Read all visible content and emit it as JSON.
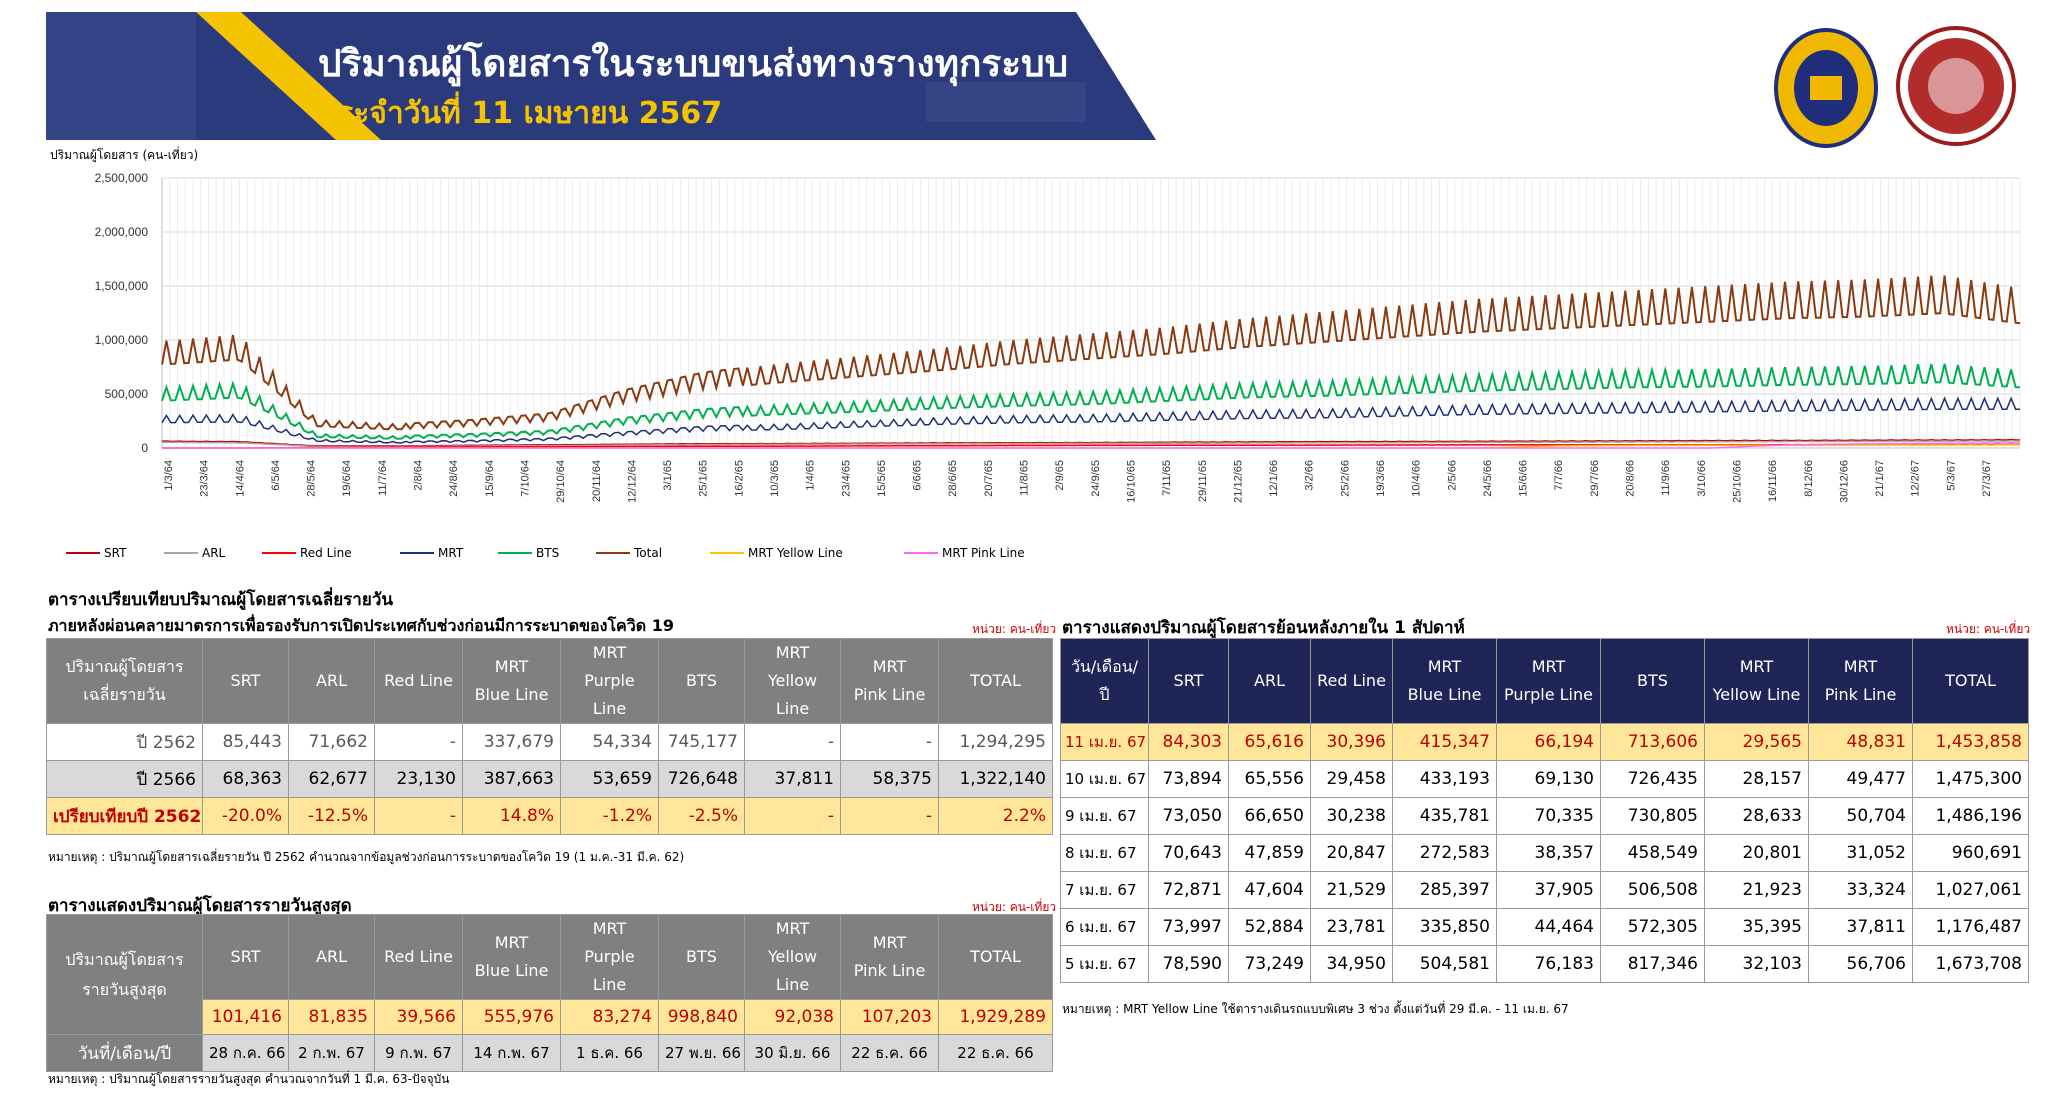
{
  "header": {
    "title": "ปริมาณผู้โดยสารในระบบขนส่งทางรางทุกระบบ",
    "subtitle": "ประจำวันที่ 11 เมษายน 2567"
  },
  "colors": {
    "banner_bg": "#2b3a7c",
    "banner_stripe": "#f5c400",
    "srt": "#c00000",
    "arl": "#a6a6a6",
    "red_line": "#ff0000",
    "mrt": "#1f2d7a",
    "bts": "#00b050",
    "total": "#8b3a0f",
    "mrt_yellow": "#ffc000",
    "mrt_pink": "#ff66ff",
    "table_header_grey": "#808080",
    "table_header_navy": "#1f2557",
    "highlight_yellow": "#ffe699",
    "highlight_row_red_text": "#c00000"
  },
  "chart_data": {
    "type": "line",
    "ylabel": "ปริมาณผู้โดยสาร (คน-เที่ยว)",
    "ylim": [
      0,
      2500000
    ],
    "y_ticks": [
      "2,500,000",
      "2,000,000",
      "1,500,000",
      "1,000,000",
      "500,000",
      "0"
    ],
    "x_tick_labels": [
      "1/3/64",
      "23/3/64",
      "14/4/64",
      "6/5/64",
      "28/5/64",
      "19/6/64",
      "11/7/64",
      "2/8/64",
      "24/8/64",
      "15/9/64",
      "7/10/64",
      "29/10/64",
      "20/11/64",
      "12/12/64",
      "3/1/65",
      "25/1/65",
      "16/2/65",
      "10/3/65",
      "1/4/65",
      "23/4/65",
      "15/5/65",
      "6/6/65",
      "28/6/65",
      "20/7/65",
      "11/8/65",
      "2/9/65",
      "24/9/65",
      "16/10/65",
      "7/11/65",
      "29/11/65",
      "21/12/65",
      "12/1/66",
      "3/2/66",
      "25/2/66",
      "19/3/66",
      "10/4/66",
      "2/5/66",
      "24/5/66",
      "15/6/66",
      "7/7/66",
      "29/7/66",
      "20/8/66",
      "11/9/66",
      "3/10/66",
      "25/10/66",
      "16/11/66",
      "8/12/66",
      "30/12/66",
      "21/1/67",
      "12/2/67",
      "5/3/67",
      "27/3/67"
    ],
    "grid": true,
    "legend_position": "bottom",
    "series": [
      {
        "name": "SRT",
        "color": "#c00000",
        "values": [
          65000,
          60000,
          20000,
          20000,
          25000,
          30000,
          35000,
          40000,
          42000,
          45000,
          48000,
          50000,
          52000,
          55000,
          58000,
          60000,
          62000,
          64000,
          66000,
          68000,
          70000,
          72000,
          74000,
          76000,
          78000
        ]
      },
      {
        "name": "ARL",
        "color": "#a6a6a6",
        "values": [
          55000,
          50000,
          15000,
          15000,
          18000,
          22000,
          28000,
          32000,
          35000,
          38000,
          40000,
          42000,
          44000,
          46000,
          48000,
          50000,
          52000,
          54000,
          56000,
          58000,
          60000,
          62000,
          64000,
          66000,
          68000
        ]
      },
      {
        "name": "Red Line",
        "color": "#ff0000",
        "values": [
          0,
          0,
          5000,
          8000,
          10000,
          12000,
          14000,
          16000,
          18000,
          20000,
          22000,
          24000,
          25000,
          26000,
          27000,
          28000,
          29000,
          30000,
          30000,
          31000,
          31000,
          32000,
          32000,
          33000,
          33000
        ]
      },
      {
        "name": "MRT",
        "color": "#1f2d7a",
        "values": [
          300000,
          310000,
          80000,
          60000,
          70000,
          90000,
          150000,
          200000,
          220000,
          250000,
          280000,
          300000,
          310000,
          330000,
          350000,
          360000,
          380000,
          400000,
          410000,
          420000,
          430000,
          440000,
          450000,
          460000,
          460000
        ]
      },
      {
        "name": "BTS",
        "color": "#00b050",
        "values": [
          560000,
          600000,
          130000,
          110000,
          130000,
          160000,
          280000,
          360000,
          400000,
          430000,
          470000,
          500000,
          520000,
          560000,
          600000,
          620000,
          650000,
          680000,
          700000,
          720000,
          730000,
          750000,
          760000,
          780000,
          720000
        ]
      },
      {
        "name": "Total",
        "color": "#8b3a0f",
        "values": [
          990000,
          1050000,
          260000,
          220000,
          260000,
          320000,
          540000,
          700000,
          780000,
          850000,
          920000,
          1000000,
          1060000,
          1120000,
          1200000,
          1260000,
          1320000,
          1380000,
          1420000,
          1460000,
          1500000,
          1540000,
          1560000,
          1600000,
          1480000
        ]
      },
      {
        "name": "MRT Yellow Line",
        "color": "#ffc000",
        "values": [
          0,
          0,
          0,
          0,
          0,
          0,
          0,
          0,
          0,
          0,
          0,
          0,
          0,
          0,
          0,
          0,
          0,
          0,
          20000,
          25000,
          26000,
          27000,
          28000,
          29000,
          30000
        ]
      },
      {
        "name": "MRT Pink Line",
        "color": "#ff66ff",
        "values": [
          0,
          0,
          0,
          0,
          0,
          0,
          0,
          0,
          0,
          0,
          0,
          0,
          0,
          0,
          0,
          0,
          0,
          0,
          0,
          0,
          0,
          30000,
          40000,
          45000,
          49000
        ]
      }
    ]
  },
  "table1": {
    "title1": "ตารางเปรียบเทียบปริมาณผู้โดยสารเฉลี่ยรายวัน",
    "title2": "ภายหลังผ่อนคลายมาตรการเพื่อรองรับการเปิดประเทศกับช่วงก่อนมีการระบาดของโควิด 19",
    "unit": "หน่วย: คน-เที่ยว",
    "header_first_line1": "ปริมาณผู้โดยสาร",
    "header_first_line2": "เฉลี่ยรายวัน",
    "headers": [
      [
        "SRT",
        ""
      ],
      [
        "ARL",
        ""
      ],
      [
        "Red Line",
        ""
      ],
      [
        "MRT",
        "Blue Line"
      ],
      [
        "MRT",
        "Purple Line"
      ],
      [
        "BTS",
        ""
      ],
      [
        "MRT",
        "Yellow Line"
      ],
      [
        "MRT",
        "Pink Line"
      ],
      [
        "TOTAL",
        ""
      ]
    ],
    "rows": [
      {
        "label": "ปี 2562",
        "cells": [
          "85,443",
          "71,662",
          "-",
          "337,679",
          "54,334",
          "745,177",
          "-",
          "-",
          "1,294,295"
        ]
      },
      {
        "label": "ปี 2566",
        "cells": [
          "68,363",
          "62,677",
          "23,130",
          "387,663",
          "53,659",
          "726,648",
          "37,811",
          "58,375",
          "1,322,140"
        ]
      },
      {
        "label": "เปรียบเทียบปี 2562",
        "cells": [
          "-20.0%",
          "-12.5%",
          "-",
          "14.8%",
          "-1.2%",
          "-2.5%",
          "-",
          "-",
          "2.2%"
        ]
      }
    ],
    "note": "หมายเหตุ : ปริมาณผู้โดยสารเฉลี่ยรายวัน ปี 2562 คำนวณจากข้อมูลช่วงก่อนการระบาดของโควิด 19 (1 ม.ค.-31 มี.ค. 62)"
  },
  "table2": {
    "title": "ตารางแสดงปริมาณผู้โดยสารรายวันสูงสุด",
    "unit": "หน่วย: คน-เที่ยว",
    "header_first_line1": "ปริมาณผู้โดยสาร",
    "header_first_line2": "รายวันสูงสุด",
    "headers": [
      [
        "SRT",
        ""
      ],
      [
        "ARL",
        ""
      ],
      [
        "Red Line",
        ""
      ],
      [
        "MRT",
        "Blue Line"
      ],
      [
        "MRT",
        "Purple Line"
      ],
      [
        "BTS",
        ""
      ],
      [
        "MRT",
        "Yellow Line"
      ],
      [
        "MRT",
        "Pink Line"
      ],
      [
        "TOTAL",
        ""
      ]
    ],
    "values": [
      "101,416",
      "81,835",
      "39,566",
      "555,976",
      "83,274",
      "998,840",
      "92,038",
      "107,203",
      "1,929,289"
    ],
    "date_label": "วันที่/เดือน/ปี",
    "dates": [
      "28 ก.ค. 66",
      "2 ก.พ. 67",
      "9 ก.พ. 67",
      "14 ก.พ. 67",
      "1 ธ.ค. 66",
      "27 พ.ย. 66",
      "30 มิ.ย. 66",
      "22 ธ.ค. 66",
      "22 ธ.ค. 66"
    ],
    "note": "หมายเหตุ : ปริมาณผู้โดยสารรายวันสูงสุด คำนวณจากวันที่ 1 มี.ค. 63-ปัจจุบัน"
  },
  "table3": {
    "title": "ตารางแสดงปริมาณผู้โดยสารย้อนหลังภายใน 1 สัปดาห์",
    "unit": "หน่วย: คน-เที่ยว",
    "header_first": "วัน/เดือน/ปี",
    "headers": [
      [
        "SRT",
        ""
      ],
      [
        "ARL",
        ""
      ],
      [
        "Red Line",
        ""
      ],
      [
        "MRT",
        "Blue Line"
      ],
      [
        "MRT",
        "Purple Line"
      ],
      [
        "BTS",
        ""
      ],
      [
        "MRT",
        "Yellow Line"
      ],
      [
        "MRT",
        "Pink Line"
      ],
      [
        "TOTAL",
        ""
      ]
    ],
    "rows": [
      {
        "label": "11 เม.ย. 67",
        "cells": [
          "84,303",
          "65,616",
          "30,396",
          "415,347",
          "66,194",
          "713,606",
          "29,565",
          "48,831",
          "1,453,858"
        ]
      },
      {
        "label": "10 เม.ย. 67",
        "cells": [
          "73,894",
          "65,556",
          "29,458",
          "433,193",
          "69,130",
          "726,435",
          "28,157",
          "49,477",
          "1,475,300"
        ]
      },
      {
        "label": "9 เม.ย. 67",
        "cells": [
          "73,050",
          "66,650",
          "30,238",
          "435,781",
          "70,335",
          "730,805",
          "28,633",
          "50,704",
          "1,486,196"
        ]
      },
      {
        "label": "8 เม.ย. 67",
        "cells": [
          "70,643",
          "47,859",
          "20,847",
          "272,583",
          "38,357",
          "458,549",
          "20,801",
          "31,052",
          "960,691"
        ]
      },
      {
        "label": "7 เม.ย. 67",
        "cells": [
          "72,871",
          "47,604",
          "21,529",
          "285,397",
          "37,905",
          "506,508",
          "21,923",
          "33,324",
          "1,027,061"
        ]
      },
      {
        "label": "6 เม.ย. 67",
        "cells": [
          "73,997",
          "52,884",
          "23,781",
          "335,850",
          "44,464",
          "572,305",
          "35,395",
          "37,811",
          "1,176,487"
        ]
      },
      {
        "label": "5 เม.ย. 67",
        "cells": [
          "78,590",
          "73,249",
          "34,950",
          "504,581",
          "76,183",
          "817,346",
          "32,103",
          "56,706",
          "1,673,708"
        ]
      }
    ],
    "note": "หมายเหตุ : MRT Yellow Line ใช้ตารางเดินรถแบบพิเศษ 3 ช่วง ตั้งแต่วันที่ 29 มี.ค. - 11 เม.ย. 67"
  }
}
